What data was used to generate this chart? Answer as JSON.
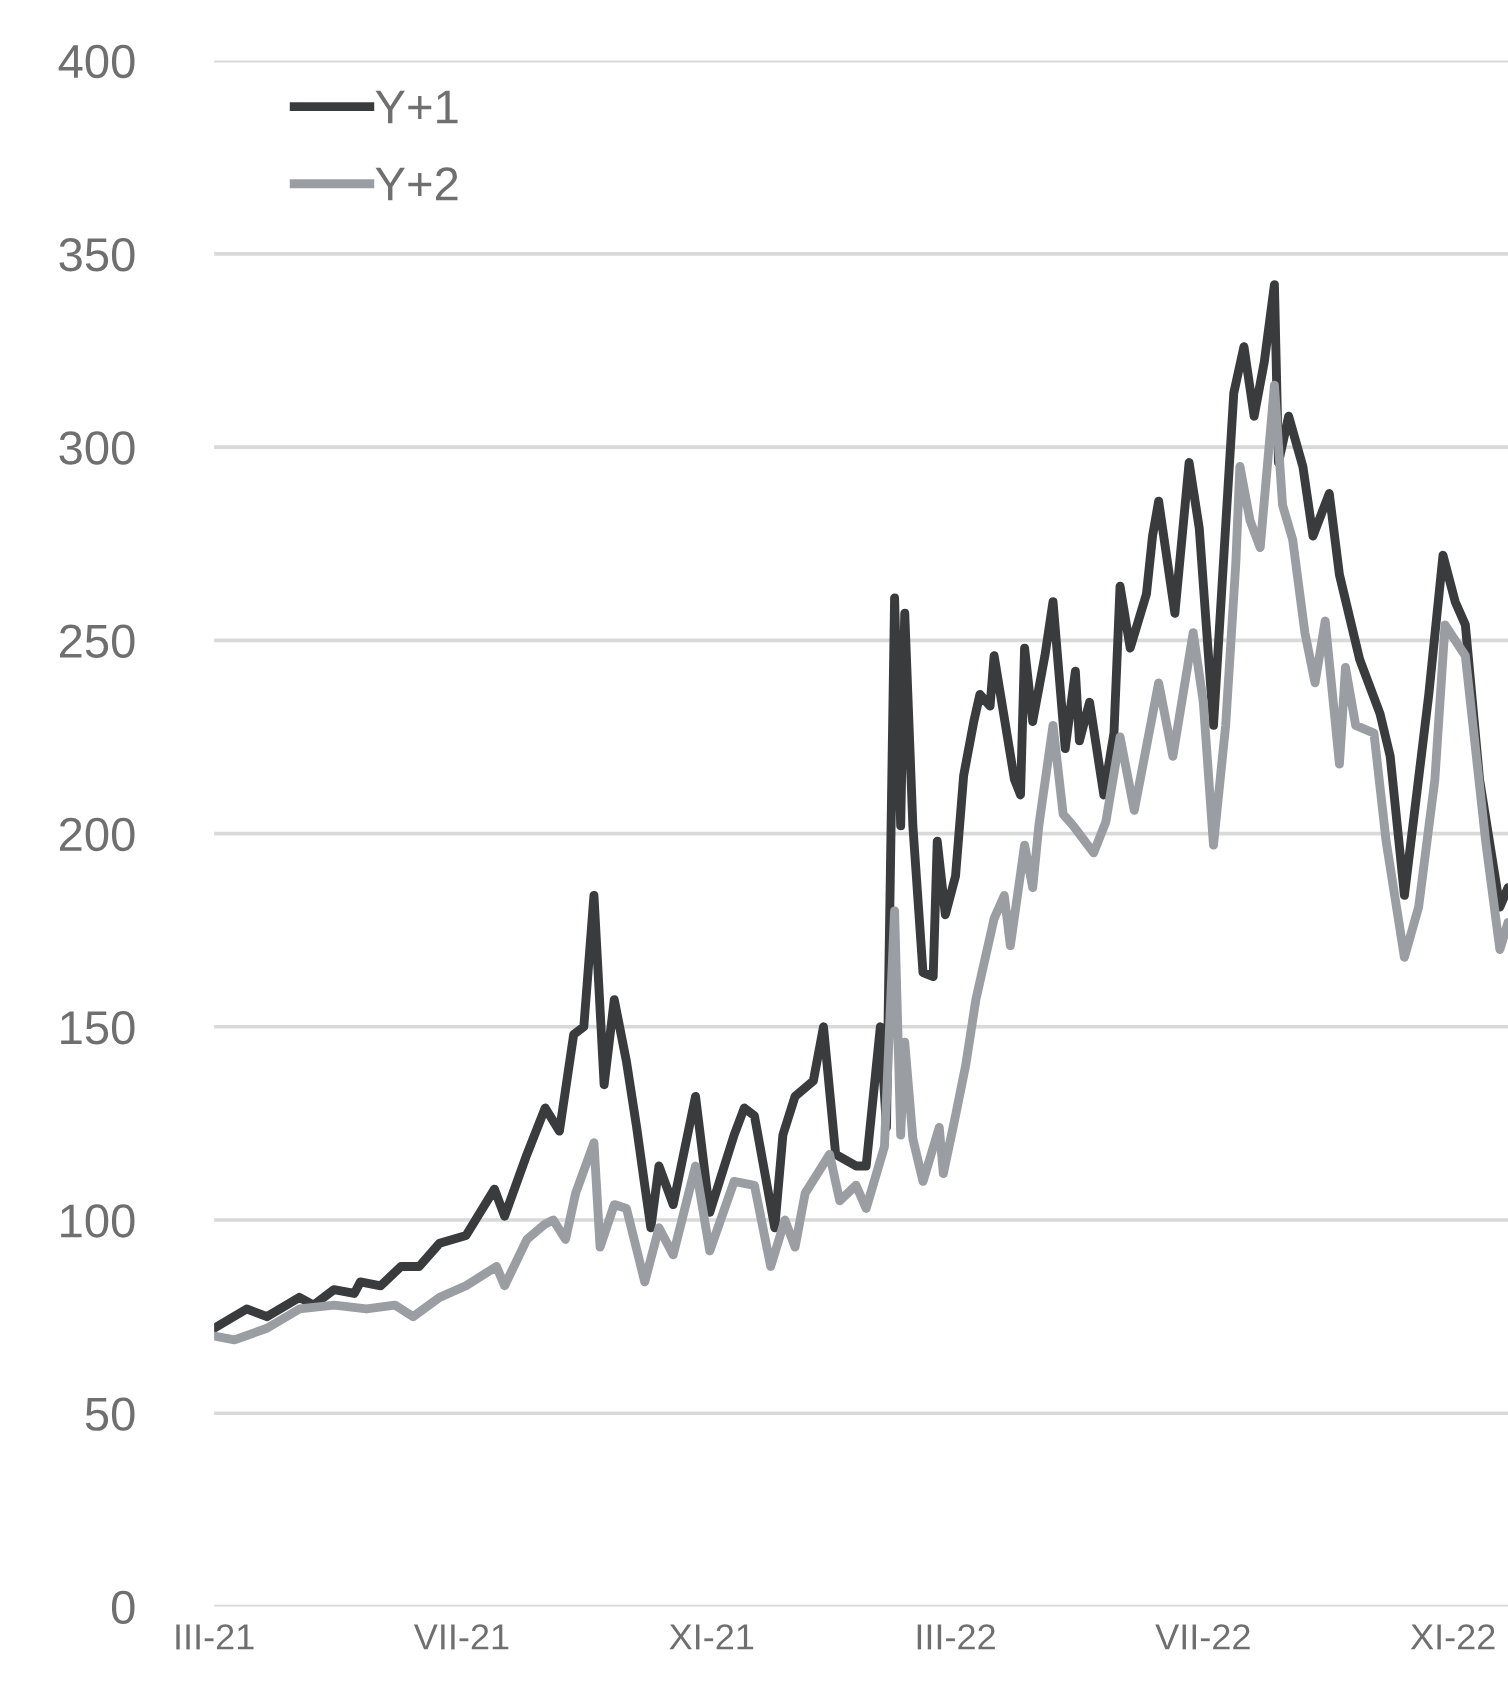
{
  "chart_data": {
    "type": "line",
    "legend": "top left",
    "grid": "y",
    "marker": "none",
    "line_style": "solid",
    "xlim": [
      "2021-03-01",
      "2022-11-28"
    ],
    "xticks": [
      {
        "value": "2021-03-01",
        "label": "III-21"
      },
      {
        "value": "2021-07-01",
        "label": "VII-21"
      },
      {
        "value": "2021-11-01",
        "label": "XI-21"
      },
      {
        "value": "2022-03-01",
        "label": "III-22"
      },
      {
        "value": "2022-07-01",
        "label": "VII-22"
      },
      {
        "value": "2022-11-01",
        "label": "XI-22"
      }
    ],
    "ylim": [
      0,
      400
    ],
    "yticks": [
      0,
      50,
      100,
      150,
      200,
      250,
      300,
      350,
      400
    ],
    "series": [
      {
        "name": "Y+1",
        "color": "#3a3b3d",
        "x": [
          "2021-03-01",
          "2021-03-17",
          "2021-03-27",
          "2021-04-12",
          "2021-04-19",
          "2021-04-29",
          "2021-05-09",
          "2021-05-12",
          "2021-05-22",
          "2021-06-01",
          "2021-06-10",
          "2021-06-20",
          "2021-07-03",
          "2021-07-17",
          "2021-07-22",
          "2021-08-02",
          "2021-08-11",
          "2021-08-18",
          "2021-08-25",
          "2021-08-30",
          "2021-09-04",
          "2021-09-09",
          "2021-09-14",
          "2021-09-20",
          "2021-09-25",
          "2021-09-29",
          "2021-10-02",
          "2021-10-06",
          "2021-10-13",
          "2021-10-24",
          "2021-10-31",
          "2021-11-12",
          "2021-11-17",
          "2021-11-22",
          "2021-12-02",
          "2021-12-06",
          "2021-12-12",
          "2021-12-21",
          "2021-12-26",
          "2022-01-01",
          "2022-01-11",
          "2022-01-16",
          "2022-01-23",
          "2022-01-26",
          "2022-01-30",
          "2022-02-02",
          "2022-02-04",
          "2022-02-08",
          "2022-02-13",
          "2022-02-18",
          "2022-02-20",
          "2022-02-24",
          "2022-03-01",
          "2022-03-05",
          "2022-03-10",
          "2022-03-13",
          "2022-03-18",
          "2022-03-20",
          "2022-03-30",
          "2022-04-02",
          "2022-04-04",
          "2022-04-08",
          "2022-04-14",
          "2022-04-18",
          "2022-04-24",
          "2022-04-29",
          "2022-05-01",
          "2022-05-06",
          "2022-05-13",
          "2022-05-18",
          "2022-05-21",
          "2022-05-26",
          "2022-06-03",
          "2022-06-06",
          "2022-06-09",
          "2022-06-17",
          "2022-06-24",
          "2022-06-29",
          "2022-07-06",
          "2022-07-16",
          "2022-07-21",
          "2022-07-26",
          "2022-07-31",
          "2022-08-05",
          "2022-08-07",
          "2022-08-12",
          "2022-08-19",
          "2022-08-24",
          "2022-09-01",
          "2022-09-06",
          "2022-09-16",
          "2022-09-26",
          "2022-10-01",
          "2022-10-08",
          "2022-10-20",
          "2022-10-27",
          "2022-11-02",
          "2022-11-07",
          "2022-11-14",
          "2022-11-24",
          "2022-11-28"
        ],
        "values": [
          72,
          77,
          75,
          80,
          78,
          82,
          81,
          84,
          83,
          88,
          88,
          94,
          96,
          108,
          101,
          117,
          129,
          123,
          148,
          150,
          184,
          135,
          157,
          141,
          124,
          109,
          98,
          114,
          104,
          132,
          102,
          122,
          129,
          127,
          98,
          122,
          132,
          136,
          150,
          117,
          114,
          114,
          150,
          124,
          261,
          202,
          257,
          202,
          164,
          163,
          198,
          179,
          189,
          215,
          229,
          236,
          233,
          246,
          214,
          210,
          248,
          229,
          246,
          260,
          222,
          242,
          224,
          234,
          210,
          226,
          264,
          248,
          262,
          277,
          286,
          257,
          296,
          279,
          228,
          314,
          326,
          308,
          322,
          342,
          296,
          308,
          295,
          277,
          288,
          267,
          245,
          231,
          220,
          184,
          236,
          272,
          260,
          254,
          214,
          181,
          186
        ]
      },
      {
        "name": "Y+2",
        "color": "#9a9ea3",
        "x": [
          "2021-03-01",
          "2021-03-11",
          "2021-03-27",
          "2021-04-12",
          "2021-04-29",
          "2021-05-15",
          "2021-05-29",
          "2021-06-07",
          "2021-06-20",
          "2021-07-03",
          "2021-07-18",
          "2021-07-22",
          "2021-08-02",
          "2021-08-11",
          "2021-08-15",
          "2021-08-21",
          "2021-08-26",
          "2021-09-04",
          "2021-09-07",
          "2021-09-14",
          "2021-09-20",
          "2021-09-29",
          "2021-10-06",
          "2021-10-13",
          "2021-10-24",
          "2021-10-31",
          "2021-11-12",
          "2021-11-22",
          "2021-11-30",
          "2021-12-07",
          "2021-12-12",
          "2021-12-17",
          "2021-12-29",
          "2022-01-03",
          "2022-01-11",
          "2022-01-16",
          "2022-01-25",
          "2022-01-30",
          "2022-02-02",
          "2022-02-04",
          "2022-02-08",
          "2022-02-13",
          "2022-02-21",
          "2022-02-23",
          "2022-03-01",
          "2022-03-06",
          "2022-03-11",
          "2022-03-20",
          "2022-03-25",
          "2022-03-28",
          "2022-04-04",
          "2022-04-08",
          "2022-04-11",
          "2022-04-18",
          "2022-04-23",
          "2022-04-28",
          "2022-05-08",
          "2022-05-14",
          "2022-05-21",
          "2022-05-28",
          "2022-06-09",
          "2022-06-16",
          "2022-06-26",
          "2022-07-01",
          "2022-07-06",
          "2022-07-12",
          "2022-07-17",
          "2022-07-19",
          "2022-07-24",
          "2022-07-29",
          "2022-08-05",
          "2022-08-09",
          "2022-08-14",
          "2022-08-17",
          "2022-08-20",
          "2022-08-25",
          "2022-08-30",
          "2022-09-06",
          "2022-09-09",
          "2022-09-14",
          "2022-09-23",
          "2022-09-29",
          "2022-10-08",
          "2022-10-15",
          "2022-10-23",
          "2022-10-28",
          "2022-11-07",
          "2022-11-17",
          "2022-11-24",
          "2022-11-28"
        ],
        "values": [
          70,
          69,
          72,
          77,
          78,
          77,
          78,
          75,
          80,
          83,
          88,
          83,
          95,
          99,
          100,
          95,
          107,
          120,
          93,
          104,
          103,
          84,
          98,
          91,
          114,
          92,
          110,
          109,
          88,
          100,
          93,
          107,
          117,
          105,
          109,
          103,
          119,
          180,
          122,
          146,
          121,
          110,
          124,
          112,
          127,
          140,
          157,
          178,
          184,
          171,
          197,
          186,
          202,
          228,
          205,
          202,
          195,
          203,
          225,
          206,
          239,
          220,
          252,
          234,
          197,
          228,
          270,
          295,
          281,
          274,
          316,
          285,
          276,
          264,
          252,
          239,
          255,
          218,
          243,
          228,
          226,
          198,
          168,
          181,
          214,
          254,
          246,
          198,
          170,
          177
        ]
      }
    ]
  }
}
